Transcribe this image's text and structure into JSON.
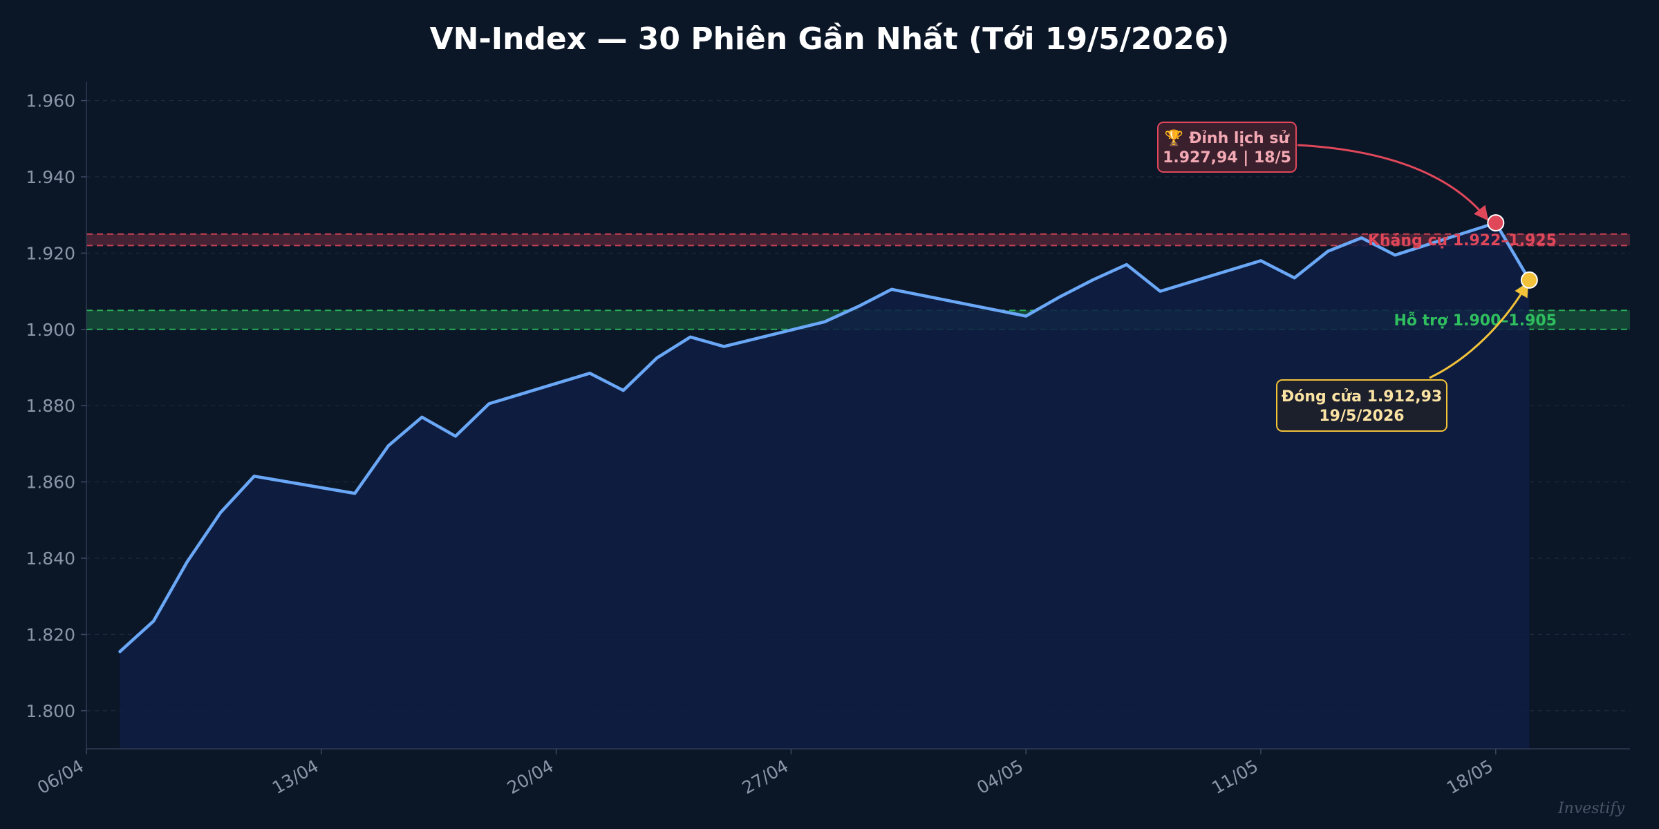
{
  "chart_data": {
    "type": "line",
    "title": "VN-Index — 30 Phiên Gần Nhất (Tới 19/5/2026)",
    "xlabel": "",
    "ylabel": "",
    "x_tick_labels": [
      "06/04",
      "13/04",
      "20/04",
      "27/04",
      "04/05",
      "11/05",
      "18/05"
    ],
    "y_ticks": [
      1800,
      1820,
      1840,
      1860,
      1880,
      1900,
      1920,
      1940,
      1960
    ],
    "y_tick_labels": [
      "1.800",
      "1.820",
      "1.840",
      "1.860",
      "1.880",
      "1.900",
      "1.920",
      "1.940",
      "1.960"
    ],
    "ylim": [
      1790,
      1965
    ],
    "xlim": [
      "2026-04-06",
      "2026-05-22"
    ],
    "grid": true,
    "series": [
      {
        "color": "#6aa8f7",
        "fill": true,
        "points": [
          [
            "2026-04-07",
            1815.5
          ],
          [
            "2026-04-08",
            1823.5
          ],
          [
            "2026-04-09",
            1839.0
          ],
          [
            "2026-04-10",
            1852.0
          ],
          [
            "2026-04-11",
            1861.5
          ],
          [
            "2026-04-14",
            1857.0
          ],
          [
            "2026-04-15",
            1869.5
          ],
          [
            "2026-04-16",
            1877.0
          ],
          [
            "2026-04-17",
            1872.0
          ],
          [
            "2026-04-18",
            1880.5
          ],
          [
            "2026-04-21",
            1888.5
          ],
          [
            "2026-04-22",
            1884.0
          ],
          [
            "2026-04-23",
            1892.5
          ],
          [
            "2026-04-24",
            1898.0
          ],
          [
            "2026-04-25",
            1895.5
          ],
          [
            "2026-04-28",
            1902.0
          ],
          [
            "2026-04-29",
            1906.0
          ],
          [
            "2026-04-30",
            1910.5
          ],
          [
            "2026-05-04",
            1903.5
          ],
          [
            "2026-05-05",
            1908.5
          ],
          [
            "2026-05-06",
            1913.0
          ],
          [
            "2026-05-07",
            1917.0
          ],
          [
            "2026-05-08",
            1910.0
          ],
          [
            "2026-05-11",
            1918.0
          ],
          [
            "2026-05-12",
            1913.5
          ],
          [
            "2026-05-13",
            1920.5
          ],
          [
            "2026-05-14",
            1924.0
          ],
          [
            "2026-05-15",
            1919.5
          ],
          [
            "2026-05-18",
            1927.94
          ],
          [
            "2026-05-19",
            1912.93
          ]
        ]
      }
    ],
    "bands": [
      {
        "label": "Kháng cự 1.922–1.925",
        "from": 1922,
        "to": 1925,
        "color": "#e0485a"
      },
      {
        "label": "Hỗ trợ 1.900–1.905",
        "from": 1900,
        "to": 1905,
        "color": "#2fbf5f"
      }
    ],
    "annotations": [
      {
        "lines": [
          "🏆 Đỉnh lịch sử",
          "1.927,94 | 18/5"
        ],
        "x": "2026-05-18",
        "y": 1927.94,
        "color": "#e0485a",
        "text_color": "#f3a9b4"
      },
      {
        "lines": [
          "Đóng cửa 1.912,93",
          "19/5/2026"
        ],
        "x": "2026-05-19",
        "y": 1912.93,
        "color": "#f2c23a",
        "text_color": "#fbe3a3"
      }
    ]
  },
  "watermark": "Investify",
  "colors": {
    "background": "#0b1627",
    "line": "#6aa8f7",
    "area": "#0f1d44"
  }
}
